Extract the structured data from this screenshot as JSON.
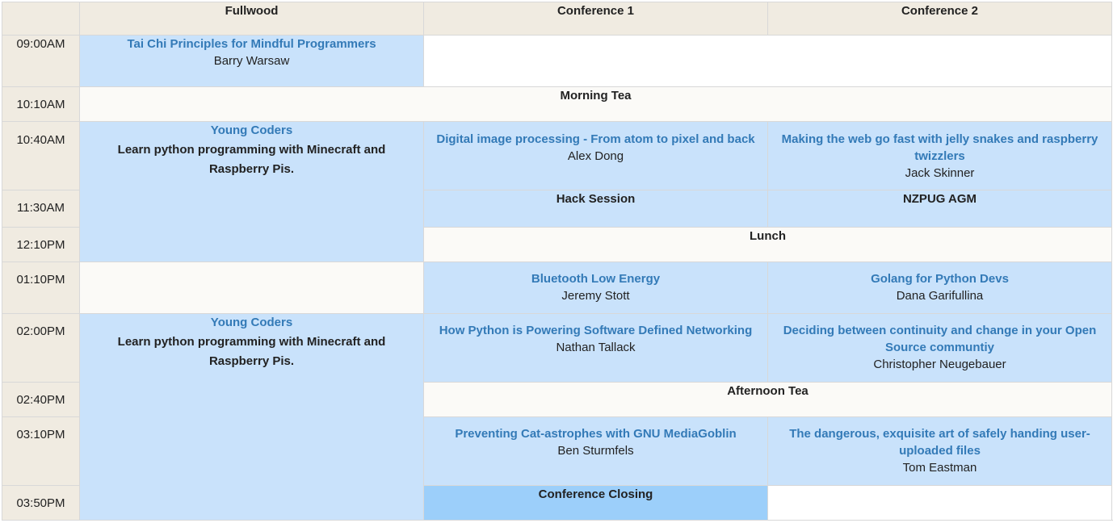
{
  "header": {
    "corner": "",
    "rooms": [
      "Fullwood",
      "Conference 1",
      "Conference 2"
    ]
  },
  "times": [
    "09:00AM",
    "10:10AM",
    "10:40AM",
    "11:30AM",
    "12:10PM",
    "01:10PM",
    "02:00PM",
    "02:40PM",
    "03:10PM",
    "03:50PM"
  ],
  "sessions": {
    "tai_chi": {
      "title": "Tai Chi Principles for Mindful Programmers",
      "speaker": "Barry Warsaw"
    },
    "morning_tea": "Morning Tea",
    "young_coders_1": {
      "title": "Young Coders",
      "desc": "Learn python programming with Minecraft and Raspberry Pis."
    },
    "digital_image": {
      "title": "Digital image processing - From atom to pixel and back",
      "speaker": "Alex Dong"
    },
    "web_fast": {
      "title": "Making the web go fast with jelly snakes and raspberry twizzlers",
      "speaker": "Jack Skinner"
    },
    "hack_session": "Hack Session",
    "nzpug_agm": "NZPUG AGM",
    "lunch": "Lunch",
    "bluetooth": {
      "title": "Bluetooth Low Energy",
      "speaker": "Jeremy Stott"
    },
    "golang": {
      "title": "Golang for Python Devs",
      "speaker": "Dana Garifullina"
    },
    "young_coders_2": {
      "title": "Young Coders",
      "desc": "Learn python programming with Minecraft and Raspberry Pis."
    },
    "sdn": {
      "title": "How Python is Powering Software Defined Networking",
      "speaker": "Nathan Tallack"
    },
    "continuity": {
      "title": "Deciding between continuity and change in your Open Source communtiy",
      "speaker": "Christopher Neugebauer"
    },
    "afternoon_tea": "Afternoon Tea",
    "mediagoblin": {
      "title": "Preventing Cat-astrophes with GNU MediaGoblin",
      "speaker": "Ben Sturmfels"
    },
    "uploads": {
      "title": "The dangerous, exquisite art of safely handing user-uploaded files",
      "speaker": "Tom Eastman"
    },
    "closing": "Conference Closing"
  }
}
